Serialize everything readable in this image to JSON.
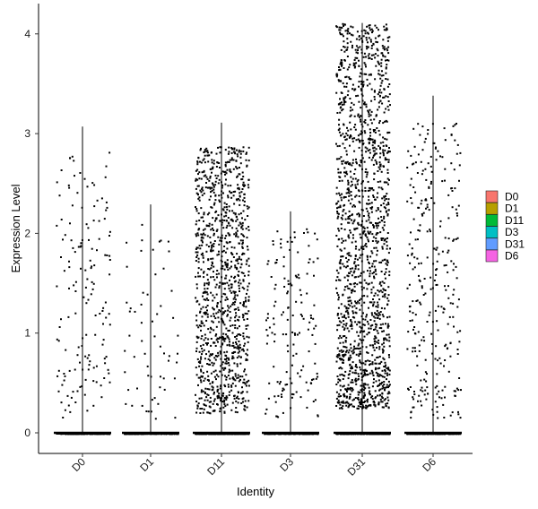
{
  "chart_data": {
    "type": "scatter",
    "subtype": "violin-jitter",
    "xlabel": "Identity",
    "ylabel": "Expression Level",
    "ylim": [
      0,
      4.2
    ],
    "yticks": [
      0,
      1,
      2,
      3,
      4
    ],
    "grid": false,
    "legend_position": "right",
    "categories": [
      "D0",
      "D1",
      "D11",
      "D3",
      "D31",
      "D6"
    ],
    "series": [
      {
        "name": "D0",
        "color": "#F8766D",
        "max": 3.07,
        "zero_cells": 600,
        "expressing_points": 150,
        "range": [
          0.15,
          3.07
        ]
      },
      {
        "name": "D1",
        "color": "#B79F00",
        "max": 2.29,
        "zero_cells": 500,
        "expressing_points": 60,
        "range": [
          0.15,
          2.29
        ]
      },
      {
        "name": "D11",
        "color": "#00BA38",
        "max": 3.11,
        "zero_cells": 800,
        "expressing_points": 1100,
        "range": [
          0.2,
          3.11
        ]
      },
      {
        "name": "D3",
        "color": "#00BFC4",
        "max": 2.22,
        "zero_cells": 600,
        "expressing_points": 150,
        "range": [
          0.15,
          2.22
        ]
      },
      {
        "name": "D31",
        "color": "#619CFF",
        "max": 4.11,
        "zero_cells": 800,
        "expressing_points": 1600,
        "range": [
          0.25,
          4.11
        ]
      },
      {
        "name": "D6",
        "color": "#F564E3",
        "max": 3.38,
        "zero_cells": 600,
        "expressing_points": 300,
        "range": [
          0.15,
          3.38
        ]
      }
    ]
  }
}
